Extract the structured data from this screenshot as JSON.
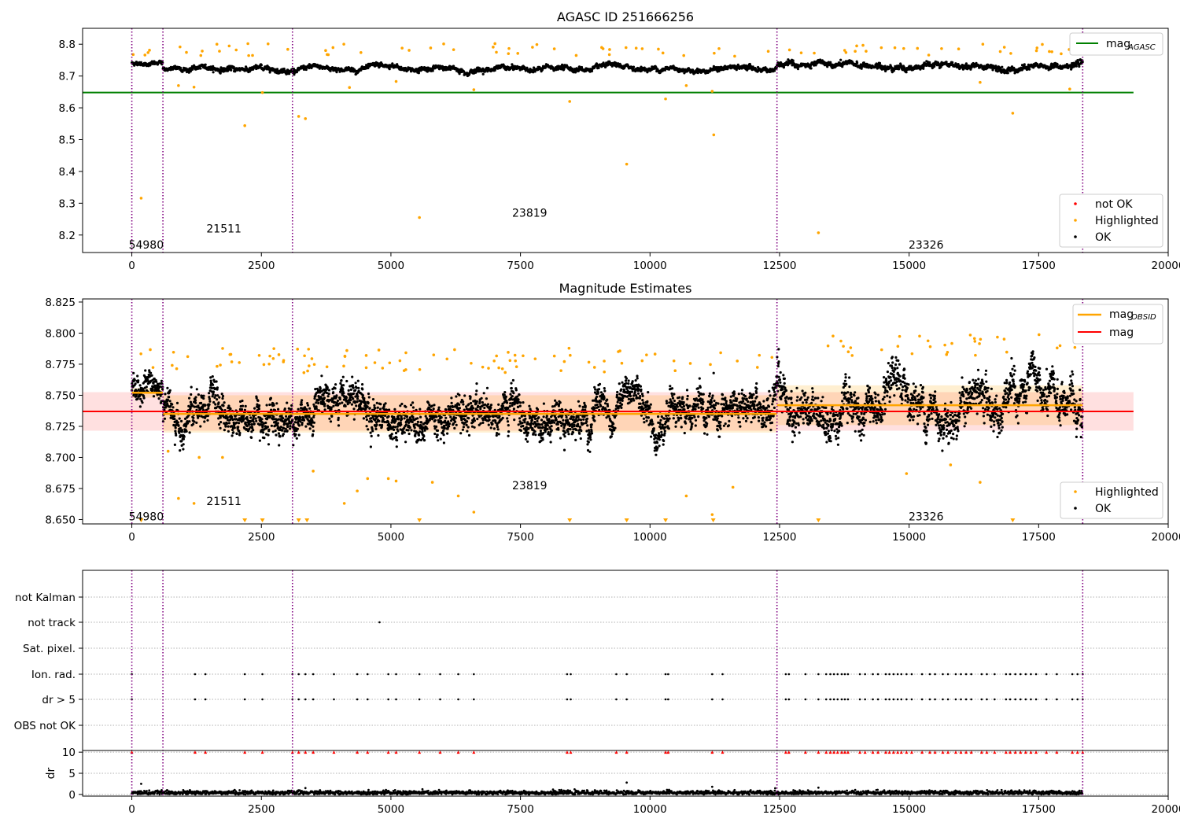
{
  "chart_data": [
    {
      "type": "scatter",
      "title": "AGASC ID 251666256",
      "xlim": [
        -950,
        20000
      ],
      "ylim": [
        8.145,
        8.85
      ],
      "yticks": [
        8.2,
        8.3,
        8.4,
        8.5,
        8.6,
        8.7,
        8.8
      ],
      "xticks": [
        0,
        2500,
        5000,
        7500,
        10000,
        12500,
        15000,
        17500,
        20000
      ],
      "reference_line": {
        "label": "mag",
        "label_sub": "AGASC",
        "value": 8.648,
        "x_range": [
          -950,
          19330
        ],
        "color": "#008000"
      },
      "series": [
        {
          "name": "not OK",
          "color": "#ff0000",
          "values": []
        },
        {
          "name": "Highlighted",
          "color": "#ffa500",
          "points": [
            [
              180,
              8.316
            ],
            [
              2180,
              8.544
            ],
            [
              2520,
              8.648
            ],
            [
              3220,
              8.573
            ],
            [
              3350,
              8.566
            ],
            [
              5550,
              8.255
            ],
            [
              6600,
              8.657
            ],
            [
              8450,
              8.62
            ],
            [
              9550,
              8.423
            ],
            [
              10300,
              8.628
            ],
            [
              10700,
              8.67
            ],
            [
              11200,
              8.652
            ],
            [
              11230,
              8.515
            ],
            [
              13250,
              8.207
            ],
            [
              16370,
              8.68
            ],
            [
              17000,
              8.583
            ],
            [
              18100,
              8.659
            ],
            [
              900,
              8.67
            ],
            [
              1200,
              8.665
            ],
            [
              4200,
              8.664
            ],
            [
              5100,
              8.683
            ]
          ]
        },
        {
          "name": "OK",
          "color": "#000000",
          "band": {
            "x_range": [
              0,
              18350
            ],
            "segments": [
              {
                "x_range": [
                  0,
                  600
                ],
                "center": 8.752,
                "spread": 0.02
              },
              {
                "x_range": [
                  600,
                  12450
                ],
                "center": 8.735,
                "spread": 0.025
              },
              {
                "x_range": [
                  12450,
                  18350
                ],
                "center": 8.742,
                "spread": 0.03
              }
            ]
          }
        }
      ],
      "obsid_boundaries": [
        0,
        600,
        3100,
        12450,
        18350
      ],
      "obsid_labels": [
        {
          "text": "54980",
          "x": 0,
          "y": 8.17
        },
        {
          "text": "21511",
          "x": 1500,
          "y": 8.22
        },
        {
          "text": "23819",
          "x": 7400,
          "y": 8.27
        },
        {
          "text": "23326",
          "x": 15050,
          "y": 8.17
        }
      ],
      "legend_upper": {
        "position": "upper right",
        "entries": [
          {
            "label": "mag",
            "sub": "AGASC",
            "color": "#008000"
          }
        ]
      },
      "legend_lower": {
        "position": "lower right",
        "entries": [
          {
            "label": "not OK",
            "color": "#ff0000"
          },
          {
            "label": "Highlighted",
            "color": "#ffa500"
          },
          {
            "label": "OK",
            "color": "#000000"
          }
        ]
      }
    },
    {
      "type": "scatter",
      "title": "Magnitude Estimates",
      "xlim": [
        -950,
        20000
      ],
      "ylim": [
        8.6465,
        8.8275
      ],
      "yticks": [
        8.65,
        8.675,
        8.7,
        8.725,
        8.75,
        8.775,
        8.8,
        8.825
      ],
      "xticks": [
        0,
        2500,
        5000,
        7500,
        10000,
        12500,
        15000,
        17500,
        20000
      ],
      "mag_line": {
        "label": "mag",
        "value": 8.737,
        "x_range": [
          -950,
          19330
        ],
        "band": [
          8.7215,
          8.7525
        ],
        "color": "#ff0000"
      },
      "mag_obsid": {
        "label": "mag",
        "label_sub": "OBSID",
        "color": "#ffa500",
        "segments": [
          {
            "x_range": [
              0,
              600
            ],
            "value": 8.752,
            "band": [
              8.748,
              8.756
            ]
          },
          {
            "x_range": [
              600,
              12450
            ],
            "value": 8.735,
            "band": [
              8.72,
              8.75
            ]
          },
          {
            "x_range": [
              12450,
              18350
            ],
            "value": 8.742,
            "band": [
              8.726,
              8.758
            ]
          }
        ]
      },
      "series": [
        {
          "name": "Highlighted",
          "color": "#ffa500",
          "points": [
            [
              700,
              8.705
            ],
            [
              900,
              8.667
            ],
            [
              1200,
              8.663
            ],
            [
              1300,
              8.7
            ],
            [
              1750,
              8.7
            ],
            [
              3500,
              8.689
            ],
            [
              4100,
              8.663
            ],
            [
              4350,
              8.673
            ],
            [
              4550,
              8.683
            ],
            [
              4950,
              8.683
            ],
            [
              5100,
              8.681
            ],
            [
              5800,
              8.68
            ],
            [
              6300,
              8.669
            ],
            [
              6600,
              8.656
            ],
            [
              10700,
              8.669
            ],
            [
              11200,
              8.654
            ],
            [
              11600,
              8.676
            ],
            [
              14950,
              8.687
            ],
            [
              15800,
              8.694
            ],
            [
              16370,
              8.68
            ],
            [
              18100,
              8.66
            ]
          ]
        },
        {
          "name": "OK",
          "color": "#000000",
          "points": []
        }
      ],
      "clipped_markers_x": [
        180,
        2180,
        2520,
        3220,
        3380,
        5550,
        8450,
        9550,
        10300,
        11220,
        13250,
        17000
      ],
      "obsid_boundaries": [
        0,
        600,
        3100,
        12450,
        18350
      ],
      "obsid_labels": [
        {
          "text": "54980",
          "x": 0,
          "y": 8.6525
        },
        {
          "text": "21511",
          "x": 1500,
          "y": 8.665
        },
        {
          "text": "23819",
          "x": 7400,
          "y": 8.6775
        },
        {
          "text": "23326",
          "x": 15050,
          "y": 8.6525
        }
      ],
      "legend_upper": {
        "position": "upper right",
        "entries": [
          {
            "label": "mag",
            "sub": "OBSID",
            "color": "#ffa500"
          },
          {
            "label": "mag",
            "color": "#ff0000"
          }
        ]
      },
      "legend_lower": {
        "position": "lower right",
        "entries": [
          {
            "label": "Highlighted",
            "color": "#ffa500"
          },
          {
            "label": "OK",
            "color": "#000000"
          }
        ]
      }
    },
    {
      "type": "scatter",
      "xlim": [
        -950,
        20000
      ],
      "xticks": [
        0,
        2500,
        5000,
        7500,
        10000,
        12500,
        15000,
        17500,
        20000
      ],
      "flag_rows": [
        "not Kalman",
        "not track",
        "Sat. pixel.",
        "Ion. rad.",
        "dr > 5",
        "OBS not OK"
      ],
      "flag_events": {
        "not track": [
          4780
        ],
        "Ion. rad.": [
          0,
          1220,
          1420,
          2180,
          2520,
          3100,
          3220,
          3350,
          3500,
          3900,
          4350,
          4550,
          4950,
          5100,
          5550,
          5950,
          6300,
          6600,
          8400,
          8470,
          9350,
          9550,
          10300,
          10350,
          11200,
          11400,
          12620,
          12680,
          13000,
          13250,
          13400,
          13480,
          13550,
          13620,
          13700,
          13760,
          13820,
          14050,
          14150,
          14300,
          14400,
          14550,
          14620,
          14700,
          14780,
          14850,
          14950,
          15050,
          15250,
          15400,
          15500,
          15650,
          15750,
          15900,
          16000,
          16100,
          16200,
          16400,
          16500,
          16650,
          16870,
          16950,
          17050,
          17150,
          17250,
          17350,
          17450,
          17650,
          17850,
          18150,
          18250,
          18350
        ],
        "dr > 5": [
          0,
          1220,
          1420,
          2180,
          2520,
          3100,
          3220,
          3350,
          3500,
          3900,
          4350,
          4550,
          4950,
          5100,
          5550,
          5950,
          6300,
          6600,
          8400,
          8470,
          9350,
          9550,
          10300,
          10350,
          11200,
          11400,
          12620,
          12680,
          13000,
          13250,
          13400,
          13480,
          13550,
          13620,
          13700,
          13760,
          13820,
          14050,
          14150,
          14300,
          14400,
          14550,
          14620,
          14700,
          14780,
          14850,
          14950,
          15050,
          15250,
          15400,
          15500,
          15650,
          15750,
          15900,
          16000,
          16100,
          16200,
          16400,
          16500,
          16650,
          16870,
          16950,
          17050,
          17150,
          17250,
          17350,
          17450,
          17650,
          17850,
          18150,
          18250,
          18350
        ]
      },
      "dr_panel": {
        "ylabel": "dr",
        "ylim": [
          -0.4,
          10.4
        ],
        "yticks": [
          0,
          5,
          10
        ],
        "typical_dr": 0.4,
        "outliers": [
          [
            180,
            2.5
          ],
          [
            9550,
            2.8
          ],
          [
            11200,
            1.8
          ],
          [
            13250,
            1.6
          ],
          [
            3350,
            1.5
          ]
        ],
        "capped_markers_x": [
          0,
          1220,
          1420,
          2180,
          2520,
          3100,
          3220,
          3350,
          3500,
          3900,
          4350,
          4550,
          4950,
          5100,
          5550,
          5950,
          6300,
          6600,
          8400,
          8470,
          9350,
          9550,
          10300,
          10350,
          11200,
          11400,
          12620,
          12680,
          13000,
          13250,
          13400,
          13480,
          13550,
          13620,
          13700,
          13760,
          13820,
          14050,
          14150,
          14300,
          14400,
          14550,
          14620,
          14700,
          14780,
          14850,
          14950,
          15050,
          15250,
          15400,
          15500,
          15650,
          15750,
          15900,
          16000,
          16100,
          16200,
          16400,
          16500,
          16650,
          16870,
          16950,
          17050,
          17150,
          17250,
          17350,
          17450,
          17650,
          17850,
          18150,
          18250,
          18350
        ]
      },
      "obsid_boundaries": [
        0,
        600,
        3100,
        12450,
        18350
      ]
    }
  ]
}
